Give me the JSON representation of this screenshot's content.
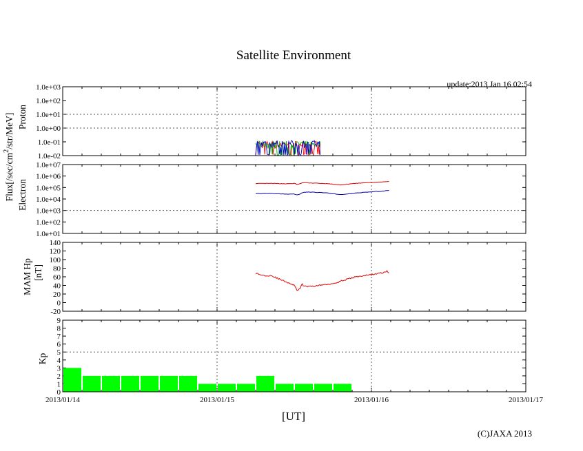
{
  "title": "Satellite Environment",
  "update": "update:2013 Jan 16 02:54",
  "copyright": "(C)JAXA 2013",
  "chart_data": {
    "type": "line",
    "xlabel": "[UT]",
    "x_ticks": [
      "2013/01/14",
      "2013/01/15",
      "2013/01/16",
      "2013/01/17"
    ],
    "x_range_days": [
      0,
      3
    ],
    "flux_label": "Flux[/sec/cm",
    "flux_label_sup": "2",
    "flux_label_tail": "/str/MeV]",
    "panels": {
      "proton": {
        "ylabel": "Proton",
        "scale": "log",
        "ylim": [
          0.01,
          1000
        ],
        "ticks": [
          "1.0e-02",
          "1.0e-01",
          "1.0e+00",
          "1.0e+01",
          "1.0e+02",
          "1.0e+03"
        ],
        "series_colors": [
          "#ff0000",
          "#00aa00",
          "#0000cc"
        ],
        "x_start": 1.25,
        "x_end": 1.67,
        "level_low": 0.012,
        "level_high": 0.09
      },
      "electron": {
        "ylabel": "Electron",
        "scale": "log",
        "ylim": [
          10,
          10000000
        ],
        "ticks": [
          "1.0e+01",
          "1.0e+02",
          "1.0e+03",
          "1.0e+04",
          "1.0e+05",
          "1.0e+06",
          "1.0e+07"
        ],
        "series": [
          {
            "color": "#dd0000",
            "x": [
              1.25,
              1.35,
              1.45,
              1.5,
              1.52,
              1.56,
              1.6,
              1.7,
              1.8,
              1.9,
              2.0,
              2.05,
              2.12
            ],
            "y": [
              220000,
              230000,
              210000,
              230000,
              180000,
              270000,
              250000,
              220000,
              170000,
              230000,
              280000,
              300000,
              350000
            ]
          },
          {
            "color": "#0000aa",
            "x": [
              1.25,
              1.35,
              1.45,
              1.5,
              1.52,
              1.56,
              1.6,
              1.7,
              1.8,
              1.9,
              2.0,
              2.05,
              2.12
            ],
            "y": [
              30000,
              31000,
              27000,
              27000,
              22000,
              38000,
              40000,
              35000,
              24000,
              33000,
              42000,
              47000,
              55000
            ]
          }
        ]
      },
      "hp": {
        "ylabel": "MAM Hp",
        "ylabel2": "[nT]",
        "scale": "linear",
        "ylim": [
          -20,
          140
        ],
        "ticks": [
          "-20",
          "0",
          "20",
          "40",
          "60",
          "80",
          "100",
          "120",
          "140"
        ],
        "series": [
          {
            "color": "#dd0000",
            "x": [
              1.25,
              1.3,
              1.35,
              1.4,
              1.45,
              1.5,
              1.52,
              1.54,
              1.55,
              1.56,
              1.6,
              1.7,
              1.76,
              1.8,
              1.9,
              2.0,
              2.08,
              2.1,
              2.12
            ],
            "y": [
              68,
              63,
              63,
              55,
              48,
              40,
              28,
              32,
              46,
              38,
              37,
              42,
              45,
              50,
              60,
              65,
              70,
              73,
              68
            ]
          }
        ]
      },
      "kp": {
        "ylabel": "Kp",
        "type": "bar",
        "ylim": [
          0,
          9
        ],
        "ticks": [
          "0",
          "1",
          "2",
          "3",
          "4",
          "5",
          "6",
          "7",
          "8",
          "9"
        ],
        "bar_color": "#00ff00",
        "bar_width_days": 0.125,
        "bar_starts": [
          0,
          0.125,
          0.25,
          0.375,
          0.5,
          0.625,
          0.75,
          0.875,
          1.0,
          1.125,
          1.25,
          1.375,
          1.5,
          1.625,
          1.75
        ],
        "values": [
          3,
          2,
          2,
          2,
          2,
          2,
          2,
          1,
          1,
          1,
          2,
          1,
          1,
          1,
          1
        ]
      }
    }
  }
}
